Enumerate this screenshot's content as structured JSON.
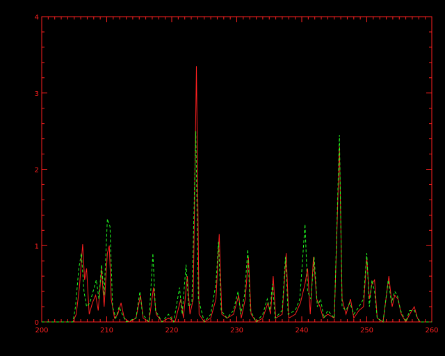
{
  "chart_data": {
    "type": "line",
    "title": "",
    "xlabel": "",
    "ylabel": "",
    "xlim": [
      200,
      260
    ],
    "ylim": [
      0,
      4
    ],
    "x_ticks": [
      "200",
      "210",
      "220",
      "230",
      "240",
      "250",
      "260"
    ],
    "y_ticks": [
      "0",
      "1",
      "2",
      "3",
      "4"
    ],
    "grid": false,
    "background": "#000000",
    "axis_color": "#ff2020",
    "series": [
      {
        "color": "#ff2020",
        "style": "solid",
        "points": [
          [
            200,
            0
          ],
          [
            204.8,
            0
          ],
          [
            205.3,
            0.1
          ],
          [
            205.8,
            0.45
          ],
          [
            206.3,
            1.02
          ],
          [
            206.6,
            0.55
          ],
          [
            206.9,
            0.7
          ],
          [
            207.3,
            0.1
          ],
          [
            207.8,
            0.25
          ],
          [
            208.3,
            0.35
          ],
          [
            208.7,
            0.15
          ],
          [
            209.2,
            0.7
          ],
          [
            209.6,
            0.2
          ],
          [
            210.1,
            0.9
          ],
          [
            210.4,
            1.0
          ],
          [
            210.7,
            0.3
          ],
          [
            211.2,
            0.05
          ],
          [
            211.7,
            0.1
          ],
          [
            212.2,
            0.25
          ],
          [
            212.7,
            0.05
          ],
          [
            213.5,
            0
          ],
          [
            214.5,
            0.05
          ],
          [
            215.2,
            0.35
          ],
          [
            215.6,
            0.05
          ],
          [
            216.5,
            0
          ],
          [
            217.2,
            0.45
          ],
          [
            217.6,
            0.1
          ],
          [
            218.5,
            0
          ],
          [
            219.5,
            0.05
          ],
          [
            220.5,
            0
          ],
          [
            221.4,
            0.3
          ],
          [
            221.8,
            0.05
          ],
          [
            222.4,
            0.6
          ],
          [
            222.8,
            0.1
          ],
          [
            223.3,
            0.3
          ],
          [
            223.8,
            3.35
          ],
          [
            224.2,
            0.1
          ],
          [
            225,
            0
          ],
          [
            226,
            0.05
          ],
          [
            226.8,
            0.3
          ],
          [
            227.3,
            1.15
          ],
          [
            227.7,
            0.1
          ],
          [
            228.5,
            0.05
          ],
          [
            229.5,
            0.1
          ],
          [
            230.3,
            0.35
          ],
          [
            230.7,
            0.05
          ],
          [
            231.3,
            0.3
          ],
          [
            231.8,
            0.85
          ],
          [
            232.2,
            0.1
          ],
          [
            233,
            0
          ],
          [
            234,
            0.05
          ],
          [
            234.8,
            0.25
          ],
          [
            235.2,
            0.1
          ],
          [
            235.6,
            0.6
          ],
          [
            236,
            0.05
          ],
          [
            237,
            0.1
          ],
          [
            237.6,
            0.9
          ],
          [
            238,
            0.05
          ],
          [
            239,
            0.1
          ],
          [
            239.8,
            0.25
          ],
          [
            240.5,
            0.5
          ],
          [
            240.9,
            0.7
          ],
          [
            241.3,
            0.1
          ],
          [
            241.8,
            0.85
          ],
          [
            242.3,
            0.3
          ],
          [
            242.8,
            0.2
          ],
          [
            243.3,
            0.05
          ],
          [
            244,
            0.1
          ],
          [
            245,
            0.05
          ],
          [
            245.8,
            2.3
          ],
          [
            246.2,
            0.3
          ],
          [
            246.8,
            0.1
          ],
          [
            247.5,
            0.3
          ],
          [
            248,
            0.05
          ],
          [
            248.8,
            0.15
          ],
          [
            249.5,
            0.2
          ],
          [
            250,
            0.85
          ],
          [
            250.4,
            0.3
          ],
          [
            250.8,
            0.5
          ],
          [
            251.2,
            0.55
          ],
          [
            251.6,
            0.05
          ],
          [
            252.5,
            0
          ],
          [
            253.4,
            0.6
          ],
          [
            253.9,
            0.2
          ],
          [
            254.3,
            0.35
          ],
          [
            254.8,
            0.3
          ],
          [
            255.3,
            0.1
          ],
          [
            256,
            0
          ],
          [
            256.6,
            0.1
          ],
          [
            257.3,
            0.2
          ],
          [
            257.8,
            0.05
          ],
          [
            258.2,
            0
          ],
          [
            260,
            0
          ]
        ]
      },
      {
        "color": "#20ff20",
        "style": "dashed",
        "points": [
          [
            200,
            0
          ],
          [
            204.8,
            0
          ],
          [
            205.2,
            0.2
          ],
          [
            205.7,
            0.7
          ],
          [
            206.1,
            0.9
          ],
          [
            206.5,
            0.4
          ],
          [
            206.9,
            0.2
          ],
          [
            207.4,
            0.25
          ],
          [
            207.9,
            0.4
          ],
          [
            208.4,
            0.55
          ],
          [
            208.8,
            0.3
          ],
          [
            209.2,
            0.75
          ],
          [
            209.6,
            0.35
          ],
          [
            210.1,
            1.35
          ],
          [
            210.5,
            1.25
          ],
          [
            210.9,
            0.2
          ],
          [
            211.4,
            0.05
          ],
          [
            211.9,
            0.2
          ],
          [
            212.4,
            0.1
          ],
          [
            213,
            0
          ],
          [
            214.5,
            0.05
          ],
          [
            215.1,
            0.4
          ],
          [
            215.5,
            0.1
          ],
          [
            216.5,
            0
          ],
          [
            217.1,
            0.9
          ],
          [
            217.5,
            0.15
          ],
          [
            218.5,
            0
          ],
          [
            219.5,
            0.1
          ],
          [
            220.3,
            0
          ],
          [
            221.2,
            0.45
          ],
          [
            221.6,
            0.1
          ],
          [
            222.2,
            0.75
          ],
          [
            222.6,
            0.2
          ],
          [
            223.1,
            0.25
          ],
          [
            223.7,
            2.5
          ],
          [
            224.1,
            0.3
          ],
          [
            225,
            0
          ],
          [
            226,
            0.1
          ],
          [
            226.8,
            0.5
          ],
          [
            227.2,
            1.05
          ],
          [
            227.6,
            0.15
          ],
          [
            228.5,
            0.05
          ],
          [
            229.5,
            0.15
          ],
          [
            230.2,
            0.4
          ],
          [
            230.6,
            0.1
          ],
          [
            231.2,
            0.35
          ],
          [
            231.7,
            0.95
          ],
          [
            232.1,
            0.15
          ],
          [
            233,
            0
          ],
          [
            234,
            0.1
          ],
          [
            234.7,
            0.3
          ],
          [
            235.1,
            0.15
          ],
          [
            235.5,
            0.5
          ],
          [
            235.9,
            0.05
          ],
          [
            237,
            0.15
          ],
          [
            237.5,
            0.85
          ],
          [
            237.9,
            0.1
          ],
          [
            239,
            0.15
          ],
          [
            239.7,
            0.3
          ],
          [
            240.5,
            1.28
          ],
          [
            240.9,
            0.4
          ],
          [
            241.4,
            0.3
          ],
          [
            241.9,
            0.85
          ],
          [
            242.4,
            0.2
          ],
          [
            242.9,
            0.3
          ],
          [
            243.4,
            0.05
          ],
          [
            244,
            0.15
          ],
          [
            245,
            0.05
          ],
          [
            245.8,
            2.45
          ],
          [
            246.2,
            0.2
          ],
          [
            246.8,
            0.15
          ],
          [
            247.4,
            0.25
          ],
          [
            248,
            0.1
          ],
          [
            248.8,
            0.2
          ],
          [
            249.5,
            0.3
          ],
          [
            250,
            0.9
          ],
          [
            250.4,
            0.2
          ],
          [
            250.8,
            0.55
          ],
          [
            251.2,
            0.4
          ],
          [
            251.6,
            0.05
          ],
          [
            252.5,
            0
          ],
          [
            253.3,
            0.55
          ],
          [
            253.8,
            0.25
          ],
          [
            254.3,
            0.4
          ],
          [
            254.7,
            0.35
          ],
          [
            255.2,
            0.15
          ],
          [
            256,
            0
          ],
          [
            256.6,
            0.15
          ],
          [
            257.3,
            0.15
          ],
          [
            257.8,
            0.05
          ],
          [
            258.2,
            0
          ],
          [
            260,
            0
          ]
        ]
      }
    ]
  }
}
